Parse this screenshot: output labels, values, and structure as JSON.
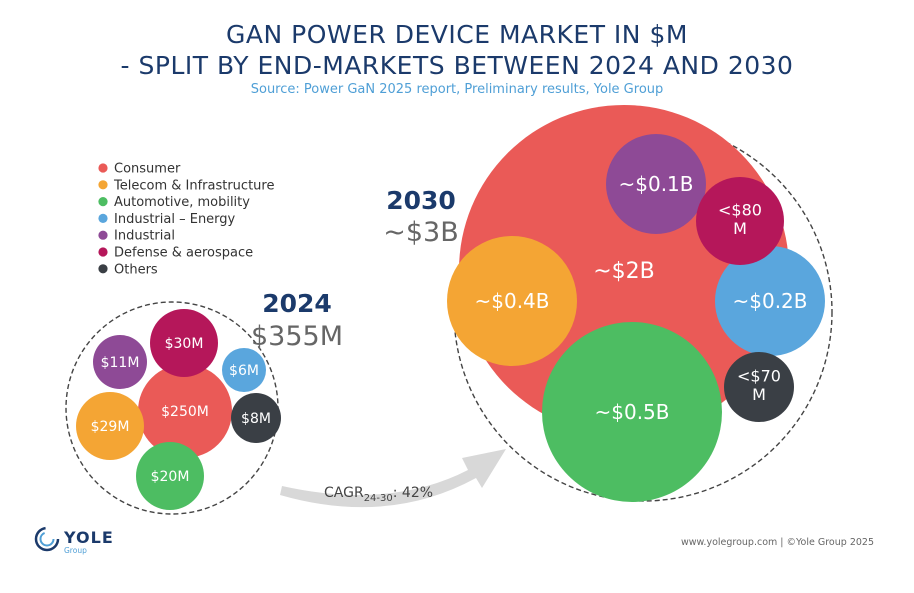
{
  "chart_data": {
    "type": "bubble",
    "title_line1": "GAN POWER DEVICE MARKET IN $M",
    "title_line2": "- SPLIT BY END-MARKETS BETWEEN 2024 AND 2030",
    "source": "Source: Power GaN 2025 report, Preliminary results, Yole Group",
    "legend": [
      {
        "name": "Consumer",
        "color": "#ea5a57"
      },
      {
        "name": "Telecom & Infrastructure",
        "color": "#f4a534"
      },
      {
        "name": "Automotive, mobility",
        "color": "#4dbd62"
      },
      {
        "name": "Industrial – Energy",
        "color": "#5aa6dd"
      },
      {
        "name": "Industrial",
        "color": "#8e4a96"
      },
      {
        "name": "Defense & aerospace",
        "color": "#b5175a"
      },
      {
        "name": "Others",
        "color": "#3a3f45"
      }
    ],
    "years": [
      {
        "year": "2024",
        "total": "$355M",
        "segments": [
          {
            "category": "Consumer",
            "label": "$250M",
            "value": 250
          },
          {
            "category": "Defense & aerospace",
            "label": "$30M",
            "value": 30
          },
          {
            "category": "Telecom & Infrastructure",
            "label": "$29M",
            "value": 29
          },
          {
            "category": "Automotive, mobility",
            "label": "$20M",
            "value": 20
          },
          {
            "category": "Industrial",
            "label": "$11M",
            "value": 11
          },
          {
            "category": "Others",
            "label": "$8M",
            "value": 8
          },
          {
            "category": "Industrial – Energy",
            "label": "$6M",
            "value": 6
          }
        ]
      },
      {
        "year": "2030",
        "total": "~$3B",
        "segments": [
          {
            "category": "Consumer",
            "label": "~$2B",
            "value": 2000
          },
          {
            "category": "Automotive, mobility",
            "label": "~$0.5B",
            "value": 500
          },
          {
            "category": "Telecom & Infrastructure",
            "label": "~$0.4B",
            "value": 400
          },
          {
            "category": "Industrial – Energy",
            "label": "~$0.2B",
            "value": 200
          },
          {
            "category": "Industrial",
            "label": "~$0.1B",
            "value": 100
          },
          {
            "category": "Defense & aerospace",
            "label": "<$80 M",
            "value": 80
          },
          {
            "category": "Others",
            "label": "<$70 M",
            "value": 70
          }
        ]
      }
    ],
    "cagr": {
      "prefix": "CAGR",
      "subscript": "24-30",
      "suffix": ": 42%"
    }
  },
  "footer": {
    "text": "www.yolegroup.com | ©Yole Group 2025"
  },
  "logo": {
    "name": "YOLE",
    "sub": "Group"
  }
}
